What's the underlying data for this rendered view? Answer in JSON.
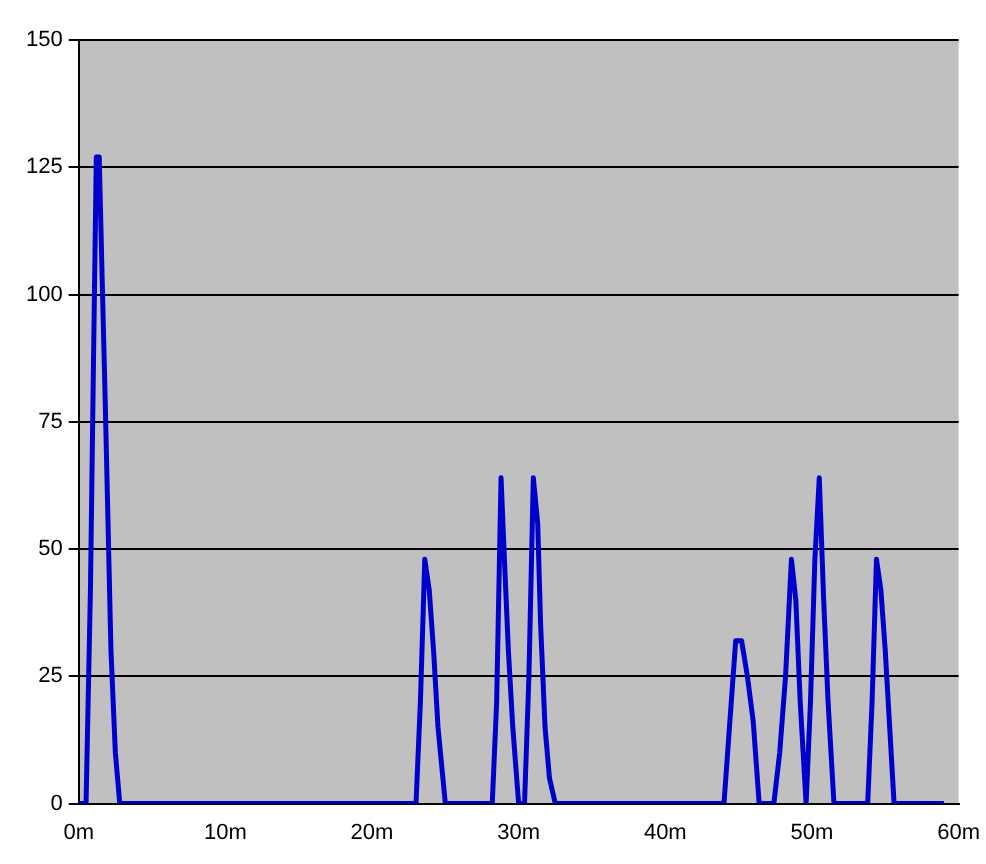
{
  "chart_data": {
    "type": "line",
    "x": [
      0,
      0.5,
      0.8,
      1.0,
      1.2,
      1.4,
      1.6,
      1.8,
      2.0,
      2.2,
      2.5,
      2.8,
      23.0,
      23.3,
      23.6,
      23.9,
      24.2,
      24.5,
      25.0,
      28.2,
      28.5,
      28.8,
      29.0,
      29.3,
      29.6,
      30.0,
      30.4,
      30.7,
      31.0,
      31.3,
      31.5,
      31.8,
      32.1,
      32.5,
      33.0,
      44.0,
      44.4,
      44.8,
      45.2,
      45.6,
      46.0,
      46.4,
      46.8,
      47.4,
      47.8,
      48.2,
      48.6,
      48.9,
      49.2,
      49.6,
      49.9,
      50.2,
      50.5,
      50.8,
      51.1,
      51.5,
      51.9,
      53.8,
      54.1,
      54.4,
      54.7,
      55.0,
      55.3,
      55.6,
      56.0,
      59.0
    ],
    "series": [
      {
        "color": "#0000cc",
        "values": [
          0,
          0,
          42,
          85,
          127,
          127,
          103,
          80,
          55,
          30,
          10,
          0,
          0,
          20,
          48,
          42,
          30,
          15,
          0,
          0,
          20,
          64,
          50,
          30,
          15,
          0,
          0,
          25,
          64,
          55,
          35,
          15,
          5,
          0,
          0,
          0,
          16,
          32,
          32,
          25,
          16,
          0,
          0,
          0,
          10,
          25,
          48,
          40,
          20,
          0,
          20,
          48,
          64,
          40,
          20,
          0,
          0,
          0,
          20,
          48,
          42,
          30,
          15,
          0,
          0,
          0
        ]
      }
    ],
    "xlim": [
      0,
      60
    ],
    "xticks": [
      {
        "value": 0,
        "label": "0m"
      },
      {
        "value": 10,
        "label": "10m"
      },
      {
        "value": 20,
        "label": "20m"
      },
      {
        "value": 30,
        "label": "30m"
      },
      {
        "value": 40,
        "label": "40m"
      },
      {
        "value": 50,
        "label": "50m"
      },
      {
        "value": 60,
        "label": "60m"
      }
    ],
    "ylim": [
      0,
      150
    ],
    "yticks": [
      0,
      25,
      50,
      75,
      100,
      125,
      150
    ],
    "grid": "y",
    "legend": false,
    "marker": "none",
    "line_style": "solid"
  }
}
